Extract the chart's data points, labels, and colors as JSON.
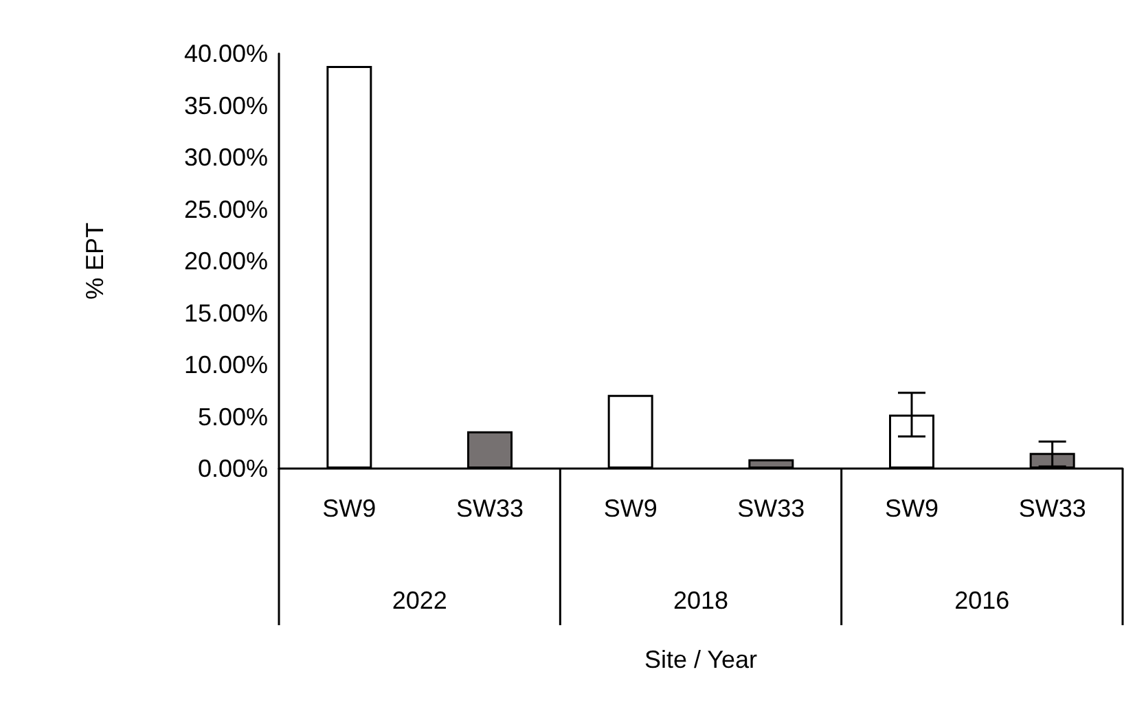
{
  "chart_data": {
    "type": "bar",
    "xlabel": "Site / Year",
    "ylabel": "% EPT",
    "categories": [
      "SW9",
      "SW33",
      "SW9",
      "SW33",
      "SW9",
      "SW33"
    ],
    "values": [
      38.8,
      3.6,
      7.1,
      0.9,
      5.2,
      1.5
    ],
    "colors": [
      "#ffffff",
      "#767171",
      "#ffffff",
      "#767171",
      "#ffffff",
      "#767171"
    ],
    "errors": [
      null,
      null,
      null,
      null,
      2.1,
      [
        0.2,
        2.6
      ]
    ],
    "annotations": [
      "2022",
      "2018",
      "2016"
    ],
    "ylim": [
      0,
      40
    ],
    "yticks": [
      {
        "value": 0,
        "label": "0.00%"
      },
      {
        "value": 5,
        "label": "5.00%"
      },
      {
        "value": 10,
        "label": "10.00%"
      },
      {
        "value": 15,
        "label": "15.00%"
      },
      {
        "value": 20,
        "label": "20.00%"
      },
      {
        "value": 25,
        "label": "25.00%"
      },
      {
        "value": 30,
        "label": "30.00%"
      },
      {
        "value": 35,
        "label": "35.00%"
      },
      {
        "value": 40,
        "label": "40.00%"
      }
    ],
    "grid": false
  }
}
